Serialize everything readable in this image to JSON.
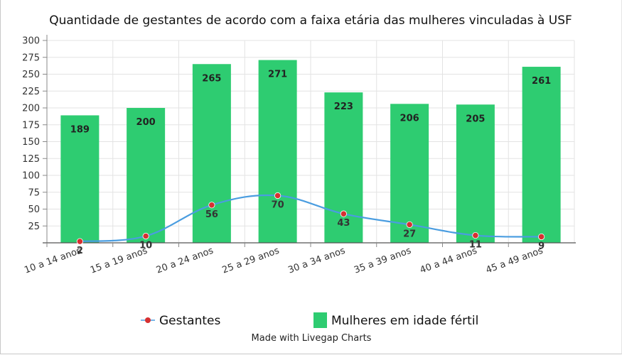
{
  "chart_data": {
    "type": "bar",
    "title": "Quantidade de gestantes de acordo com a faixa etária das mulheres vinculadas à USF",
    "categories": [
      "10 a 14 anos",
      "15 a 19 anos",
      "20 a 24 anos",
      "25 a 29 anos",
      "30 a 34 anos",
      "35 a 39 anos",
      "40 a 44 anos",
      "45 a 49 anos"
    ],
    "series": [
      {
        "name": "Gestantes",
        "type": "line",
        "color": "#4a9de0",
        "marker_color": "#d63031",
        "values": [
          2,
          10,
          56,
          70,
          43,
          27,
          11,
          9
        ]
      },
      {
        "name": "Mulheres em idade fértil",
        "type": "bar",
        "color": "#2ecc71",
        "values": [
          189,
          200,
          265,
          271,
          223,
          206,
          205,
          261
        ]
      }
    ],
    "y_ticks": [
      25,
      50,
      75,
      100,
      125,
      150,
      175,
      200,
      225,
      250,
      275,
      300
    ],
    "ylim": [
      0,
      300
    ],
    "grid": true,
    "legend_position": "bottom",
    "credit": "Made with Livegap Charts"
  }
}
